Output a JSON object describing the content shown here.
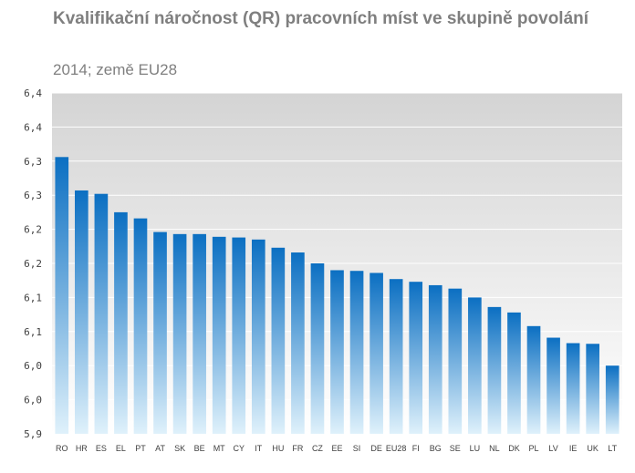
{
  "title": "Kvalifikační náročnost (QR)  pracovních míst ve skupině povolání",
  "subtitle": "2014; země EU28",
  "chart_data": {
    "type": "bar",
    "title": "Kvalifikační náročnost (QR)  pracovních míst ve skupině povolání",
    "subtitle": "2014; země EU28",
    "categories": [
      "RO",
      "HR",
      "ES",
      "EL",
      "PT",
      "AT",
      "SK",
      "BE",
      "MT",
      "CY",
      "IT",
      "HU",
      "FR",
      "CZ",
      "EE",
      "SI",
      "DE",
      "EU28",
      "FI",
      "BG",
      "SE",
      "LU",
      "NL",
      "DK",
      "PL",
      "LV",
      "IE",
      "UK",
      "LT"
    ],
    "values": [
      6.306,
      6.257,
      6.252,
      6.225,
      6.216,
      6.196,
      6.193,
      6.193,
      6.189,
      6.188,
      6.185,
      6.173,
      6.166,
      6.15,
      6.14,
      6.139,
      6.136,
      6.127,
      6.123,
      6.118,
      6.113,
      6.1,
      6.086,
      6.078,
      6.058,
      6.041,
      6.033,
      6.032,
      6.0
    ],
    "ylim": [
      5.9,
      6.4
    ],
    "yticks": [
      5.9,
      5.95,
      6.0,
      6.05,
      6.1,
      6.15,
      6.2,
      6.25,
      6.3,
      6.35,
      6.4
    ],
    "ytick_labels": [
      "5,9",
      "6,0",
      "6,0",
      "6,1",
      "6,1",
      "6,2",
      "6,2",
      "6,3",
      "6,3",
      "6,4",
      "6,4"
    ],
    "xlabel": "",
    "ylabel": "",
    "grid": true,
    "colors": {
      "bar_top": "#0b6fc2",
      "bar_bottom": "#dff1fb",
      "plot_bg_top": "#d4d4d4",
      "plot_bg_bottom": "#ffffff",
      "grid": "#ffffff"
    }
  }
}
